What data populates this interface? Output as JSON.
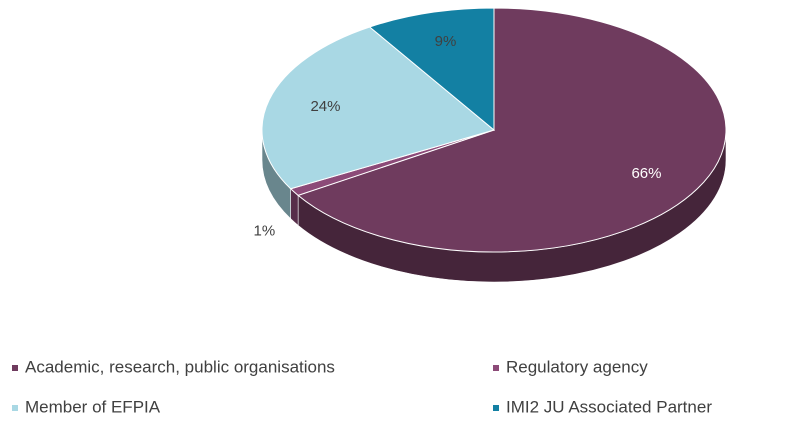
{
  "chart_data": {
    "type": "pie",
    "categories": [
      "Academic, research, public organisations",
      "Regulatory agency",
      "Member of EFPIA",
      "IMI2 JU Associated Partner"
    ],
    "values": [
      66,
      1,
      24,
      9
    ],
    "value_labels": [
      "66%",
      "1%",
      "24%",
      "9%"
    ],
    "colors": [
      "#6f3b5e",
      "#8c4a78",
      "#a9d8e4",
      "#1380a3"
    ],
    "three_d": true
  }
}
